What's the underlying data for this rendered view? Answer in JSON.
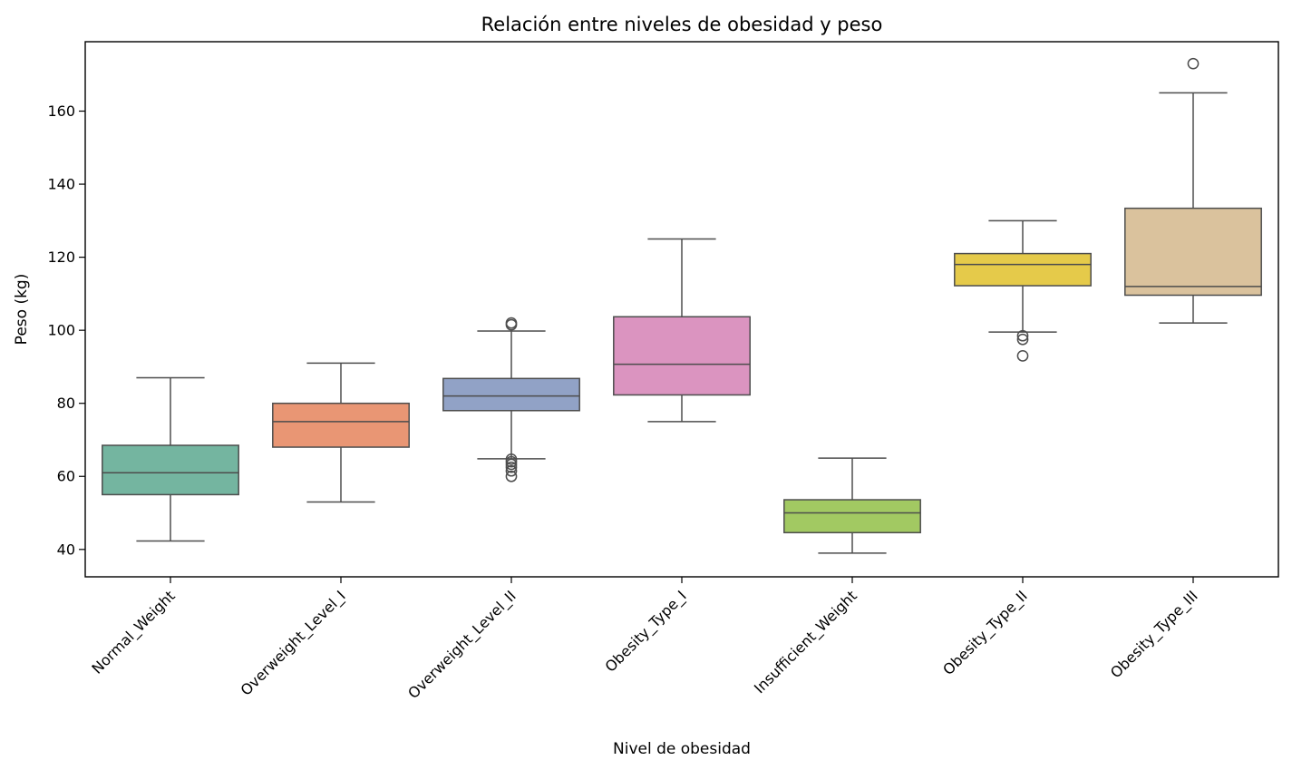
{
  "chart_data": {
    "type": "box",
    "title": "Relación entre niveles de obesidad y peso",
    "xlabel": "Nivel de obesidad",
    "ylabel": "Peso (kg)",
    "ylim": [
      32.5,
      179
    ],
    "yticks": [
      40,
      60,
      80,
      100,
      120,
      140,
      160
    ],
    "grid": false,
    "legend": "none",
    "categories": [
      "Normal_Weight",
      "Overweight_Level_I",
      "Overweight_Level_II",
      "Obesity_Type_I",
      "Insufficient_Weight",
      "Obesity_Type_II",
      "Obesity_Type_III"
    ],
    "boxes": [
      {
        "category": "Normal_Weight",
        "color": "#74b5a0",
        "whisker_low": 42.3,
        "q1": 55.0,
        "median": 61.0,
        "q3": 68.5,
        "whisker_high": 87.0,
        "outliers": []
      },
      {
        "category": "Overweight_Level_I",
        "color": "#e99674",
        "whisker_low": 53.0,
        "q1": 68.0,
        "median": 75.0,
        "q3": 80.0,
        "whisker_high": 91.0,
        "outliers": []
      },
      {
        "category": "Overweight_Level_II",
        "color": "#91a2c6",
        "whisker_low": 64.8,
        "q1": 78.0,
        "median": 82.0,
        "q3": 86.8,
        "whisker_high": 99.8,
        "outliers": [
          60.0,
          61.5,
          62.5,
          63.3,
          64.0,
          64.7,
          101.5,
          102.0
        ]
      },
      {
        "category": "Obesity_Type_I",
        "color": "#db94c0",
        "whisker_low": 75.0,
        "q1": 82.3,
        "median": 90.7,
        "q3": 103.7,
        "whisker_high": 125.0,
        "outliers": []
      },
      {
        "category": "Insufficient_Weight",
        "color": "#a2c962",
        "whisker_low": 39.0,
        "q1": 44.6,
        "median": 50.0,
        "q3": 53.6,
        "whisker_high": 65.0,
        "outliers": []
      },
      {
        "category": "Obesity_Type_II",
        "color": "#e5ca4a",
        "whisker_low": 99.5,
        "q1": 112.2,
        "median": 118.0,
        "q3": 121.0,
        "whisker_high": 130.0,
        "outliers": [
          93.0,
          97.5,
          98.5
        ]
      },
      {
        "category": "Obesity_Type_III",
        "color": "#dac29d",
        "whisker_low": 102.0,
        "q1": 109.6,
        "median": 112.0,
        "q3": 133.4,
        "whisker_high": 165.0,
        "outliers": [
          173.0
        ]
      }
    ]
  }
}
